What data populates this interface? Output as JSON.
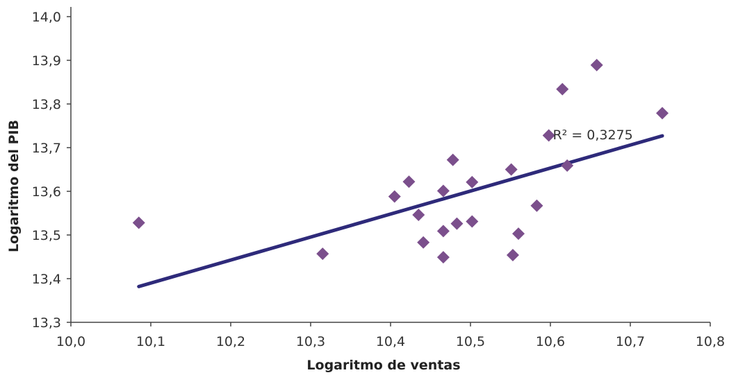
{
  "chart_data": {
    "type": "scatter",
    "title": "",
    "xlabel": "Logaritmo de ventas",
    "ylabel": "Logaritmo del PIB",
    "xlim": [
      10.0,
      10.8
    ],
    "ylim": [
      13.3,
      14.0
    ],
    "x_ticks": [
      "10,0",
      "10,1",
      "10,2",
      "10,3",
      "10,4",
      "10,5",
      "10,6",
      "10,7",
      "10,8"
    ],
    "y_ticks": [
      "13,3",
      "13,4",
      "13,5",
      "13,6",
      "13,7",
      "13,8",
      "13,9",
      "14,0"
    ],
    "grid": false,
    "legend": "none",
    "marker_color": "#7B4F8C",
    "trendline_color": "#2E2A7A",
    "points": [
      {
        "x": 10.085,
        "y": 13.528
      },
      {
        "x": 10.315,
        "y": 13.457
      },
      {
        "x": 10.405,
        "y": 13.588
      },
      {
        "x": 10.423,
        "y": 13.622
      },
      {
        "x": 10.435,
        "y": 13.546
      },
      {
        "x": 10.441,
        "y": 13.483
      },
      {
        "x": 10.466,
        "y": 13.601
      },
      {
        "x": 10.466,
        "y": 13.509
      },
      {
        "x": 10.466,
        "y": 13.449
      },
      {
        "x": 10.478,
        "y": 13.672
      },
      {
        "x": 10.483,
        "y": 13.526
      },
      {
        "x": 10.502,
        "y": 13.621
      },
      {
        "x": 10.502,
        "y": 13.531
      },
      {
        "x": 10.551,
        "y": 13.65
      },
      {
        "x": 10.553,
        "y": 13.454
      },
      {
        "x": 10.56,
        "y": 13.503
      },
      {
        "x": 10.583,
        "y": 13.567
      },
      {
        "x": 10.598,
        "y": 13.728
      },
      {
        "x": 10.615,
        "y": 13.834
      },
      {
        "x": 10.621,
        "y": 13.659
      },
      {
        "x": 10.658,
        "y": 13.889
      },
      {
        "x": 10.74,
        "y": 13.779
      }
    ],
    "trendline": {
      "x_start": 10.085,
      "y_start": 13.382,
      "x_end": 10.74,
      "y_end": 13.727
    },
    "annotation": "R² = 0,3275"
  }
}
